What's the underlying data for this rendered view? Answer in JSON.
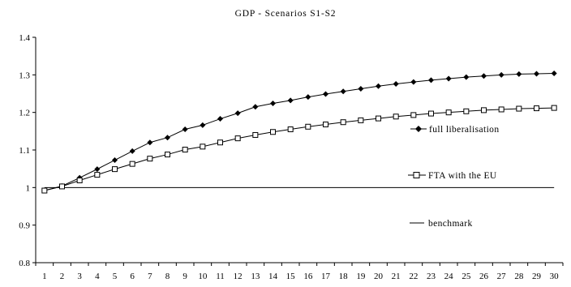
{
  "chart_data": {
    "type": "line",
    "title": "GDP - Scenarios S1-S2",
    "xlabel": "",
    "ylabel": "",
    "x": [
      1,
      2,
      3,
      4,
      5,
      6,
      7,
      8,
      9,
      10,
      11,
      12,
      13,
      14,
      15,
      16,
      17,
      18,
      19,
      20,
      21,
      22,
      23,
      24,
      25,
      26,
      27,
      28,
      29,
      30
    ],
    "ylim": [
      0.8,
      1.4
    ],
    "yticks": [
      "0.8",
      "0.9",
      "1",
      "1.1",
      "1.2",
      "1.3",
      "1.4"
    ],
    "grid": false,
    "legend_position": "right",
    "series": [
      {
        "name": "full liberalisation",
        "marker": "diamond-filled",
        "color": "#000000",
        "values": [
          0.992,
          1.004,
          1.026,
          1.049,
          1.073,
          1.097,
          1.12,
          1.133,
          1.155,
          1.166,
          1.183,
          1.198,
          1.215,
          1.224,
          1.232,
          1.241,
          1.249,
          1.256,
          1.263,
          1.27,
          1.276,
          1.281,
          1.286,
          1.29,
          1.294,
          1.297,
          1.3,
          1.302,
          1.303,
          1.304
        ]
      },
      {
        "name": "FTA with the EU",
        "marker": "square-open",
        "color": "#000000",
        "values": [
          0.992,
          1.003,
          1.019,
          1.034,
          1.049,
          1.063,
          1.077,
          1.088,
          1.101,
          1.109,
          1.12,
          1.131,
          1.14,
          1.148,
          1.155,
          1.162,
          1.168,
          1.174,
          1.179,
          1.184,
          1.189,
          1.193,
          1.197,
          1.2,
          1.203,
          1.206,
          1.208,
          1.21,
          1.211,
          1.212
        ]
      },
      {
        "name": "benchmark",
        "marker": "none",
        "color": "#000000",
        "values": [
          1,
          1,
          1,
          1,
          1,
          1,
          1,
          1,
          1,
          1,
          1,
          1,
          1,
          1,
          1,
          1,
          1,
          1,
          1,
          1,
          1,
          1,
          1,
          1,
          1,
          1,
          1,
          1,
          1,
          1
        ]
      }
    ]
  }
}
